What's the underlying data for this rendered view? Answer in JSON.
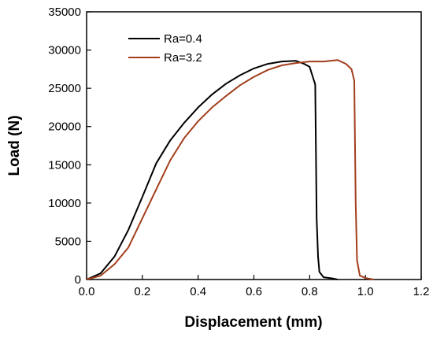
{
  "chart_data": {
    "type": "line",
    "title": "",
    "xlabel": "Displacement (mm)",
    "ylabel": "Load (N)",
    "xlim": [
      0.0,
      1.2
    ],
    "ylim": [
      0,
      35000
    ],
    "x_ticks": [
      "0.0",
      "0.2",
      "0.4",
      "0.6",
      "0.8",
      "1.0",
      "1.2"
    ],
    "y_ticks": [
      "0",
      "5000",
      "10000",
      "15000",
      "20000",
      "25000",
      "30000",
      "35000"
    ],
    "grid": false,
    "legend_position": "top-left",
    "series": [
      {
        "name": "Ra=0.4",
        "color": "#000000",
        "points": [
          [
            0.0,
            0
          ],
          [
            0.05,
            800
          ],
          [
            0.1,
            3000
          ],
          [
            0.15,
            6500
          ],
          [
            0.2,
            10800
          ],
          [
            0.25,
            15200
          ],
          [
            0.3,
            18200
          ],
          [
            0.35,
            20500
          ],
          [
            0.4,
            22500
          ],
          [
            0.45,
            24200
          ],
          [
            0.5,
            25600
          ],
          [
            0.55,
            26700
          ],
          [
            0.6,
            27600
          ],
          [
            0.65,
            28200
          ],
          [
            0.7,
            28500
          ],
          [
            0.75,
            28600
          ],
          [
            0.78,
            28200
          ],
          [
            0.8,
            27800
          ],
          [
            0.82,
            25500
          ],
          [
            0.825,
            8000
          ],
          [
            0.83,
            3000
          ],
          [
            0.835,
            1000
          ],
          [
            0.85,
            300
          ],
          [
            0.88,
            150
          ],
          [
            0.9,
            0
          ]
        ]
      },
      {
        "name": "Ra=3.2",
        "color": "#a23e1c",
        "points": [
          [
            0.0,
            0
          ],
          [
            0.05,
            500
          ],
          [
            0.1,
            2000
          ],
          [
            0.15,
            4200
          ],
          [
            0.2,
            8000
          ],
          [
            0.25,
            11800
          ],
          [
            0.3,
            15600
          ],
          [
            0.35,
            18500
          ],
          [
            0.4,
            20700
          ],
          [
            0.45,
            22500
          ],
          [
            0.5,
            24000
          ],
          [
            0.55,
            25400
          ],
          [
            0.6,
            26500
          ],
          [
            0.65,
            27400
          ],
          [
            0.7,
            28000
          ],
          [
            0.75,
            28300
          ],
          [
            0.8,
            28500
          ],
          [
            0.85,
            28500
          ],
          [
            0.9,
            28700
          ],
          [
            0.93,
            28200
          ],
          [
            0.95,
            27500
          ],
          [
            0.96,
            26000
          ],
          [
            0.965,
            10000
          ],
          [
            0.97,
            2500
          ],
          [
            0.98,
            500
          ],
          [
            1.0,
            200
          ],
          [
            1.03,
            0
          ]
        ]
      }
    ]
  }
}
